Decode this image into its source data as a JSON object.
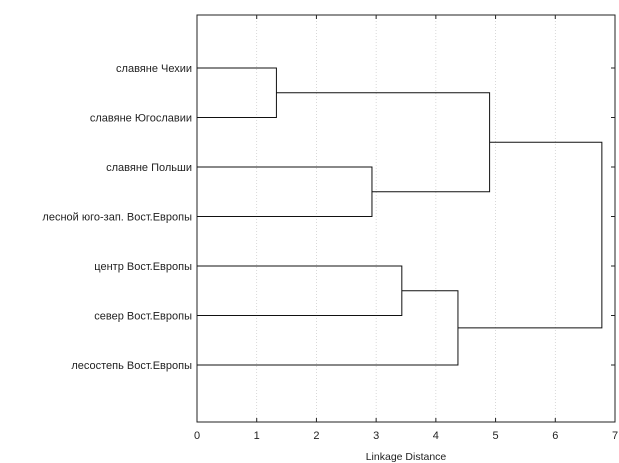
{
  "chart_data": {
    "type": "dendrogram",
    "title": "",
    "xlabel": "Linkage Distance",
    "ylabel": "",
    "xlim": [
      0,
      7
    ],
    "x_ticks": [
      "0",
      "1",
      "2",
      "3",
      "4",
      "5",
      "6",
      "7"
    ],
    "grid": true,
    "leaves": [
      "славяне Чехии",
      "славяне Югославии",
      "славяне Польши",
      "лесной юго-зап. Вост.Европы",
      "центр Вост.Европы",
      "север Вост.Европы",
      "лесостепь Вост.Европы"
    ],
    "merges": [
      {
        "a": "L0",
        "b": "L1",
        "distance": 1.33
      },
      {
        "a": "L2",
        "b": "L3",
        "distance": 2.93
      },
      {
        "a": "L4",
        "b": "L5",
        "distance": 3.43
      },
      {
        "a": "M2",
        "b": "L6",
        "distance": 4.37
      },
      {
        "a": "M0",
        "b": "M1",
        "distance": 4.9
      },
      {
        "a": "M4",
        "b": "M3",
        "distance": 6.78
      }
    ]
  }
}
